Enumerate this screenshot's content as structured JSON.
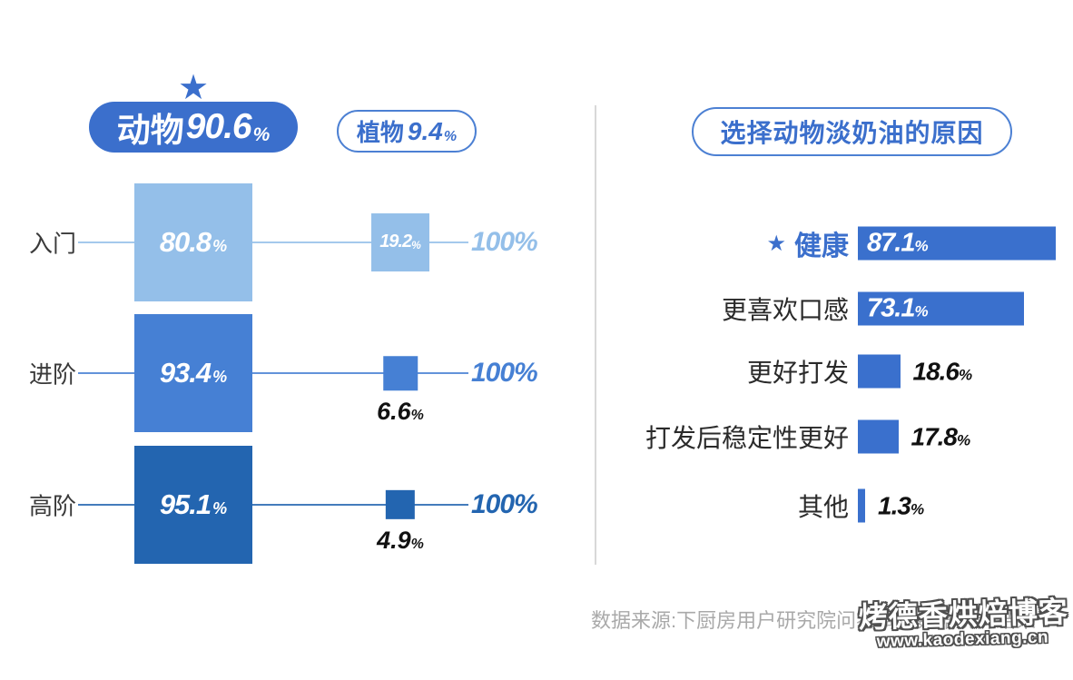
{
  "symbols": {
    "percent": "%",
    "star": "★"
  },
  "colors": {
    "accent": "#3B6FCC",
    "row_light": "#94BFE9",
    "row_medium": "#4680D4",
    "row_dark": "#2365B0",
    "divider": "#D8D8D8",
    "source_text": "#A9A9A9"
  },
  "left_chart": {
    "winner_badge": {
      "label": "动物",
      "value": "90.6"
    },
    "runner_badge": {
      "label": "植物",
      "value": "9.4"
    },
    "rows": [
      {
        "level": "入门",
        "animal_value": "80.8",
        "plant_value": "19.2",
        "total_label": "100%",
        "color": "#94BFE9",
        "plant_value_position": "inside"
      },
      {
        "level": "进阶",
        "animal_value": "93.4",
        "plant_value": "6.6",
        "total_label": "100%",
        "color": "#4680D4",
        "plant_value_position": "below"
      },
      {
        "level": "高阶",
        "animal_value": "95.1",
        "plant_value": "4.9",
        "total_label": "100%",
        "color": "#2365B0",
        "plant_value_position": "below"
      }
    ]
  },
  "right_chart": {
    "title": "选择动物淡奶油的原因",
    "bars": [
      {
        "label": "健康",
        "value": "87.1",
        "starred": true,
        "value_position": "inside"
      },
      {
        "label": "更喜欢口感",
        "value": "73.1",
        "starred": false,
        "value_position": "inside"
      },
      {
        "label": "更好打发",
        "value": "18.6",
        "starred": false,
        "value_position": "outside"
      },
      {
        "label": "打发后稳定性更好",
        "value": "17.8",
        "starred": false,
        "value_position": "outside"
      },
      {
        "label": "其他",
        "value": "1.3",
        "starred": false,
        "value_position": "outside"
      }
    ]
  },
  "footer": {
    "source": "数据来源:下厨房用户研究院问卷调查数据统计结果"
  },
  "watermark": {
    "line1": "烤德香烘焙博客",
    "line2": "www.kaodexiang.cn"
  },
  "chart_data": [
    {
      "type": "bar",
      "title": "",
      "categories": [
        "入门",
        "进阶",
        "高阶"
      ],
      "series": [
        {
          "name": "动物",
          "values": [
            80.8,
            93.4,
            95.1
          ]
        },
        {
          "name": "植物",
          "values": [
            19.2,
            6.6,
            4.9
          ]
        }
      ],
      "row_totals": [
        100,
        100,
        100
      ],
      "overall": {
        "动物": 90.6,
        "植物": 9.4
      },
      "unit": "%",
      "orientation": "horizontal",
      "legend_position": "top"
    },
    {
      "type": "bar",
      "title": "选择动物淡奶油的原因",
      "categories": [
        "健康",
        "更喜欢口感",
        "更好打发",
        "打发后稳定性更好",
        "其他"
      ],
      "values": [
        87.1,
        73.1,
        18.6,
        17.8,
        1.3
      ],
      "unit": "%",
      "orientation": "horizontal",
      "xlim": [
        0,
        100
      ],
      "grid": false
    }
  ]
}
